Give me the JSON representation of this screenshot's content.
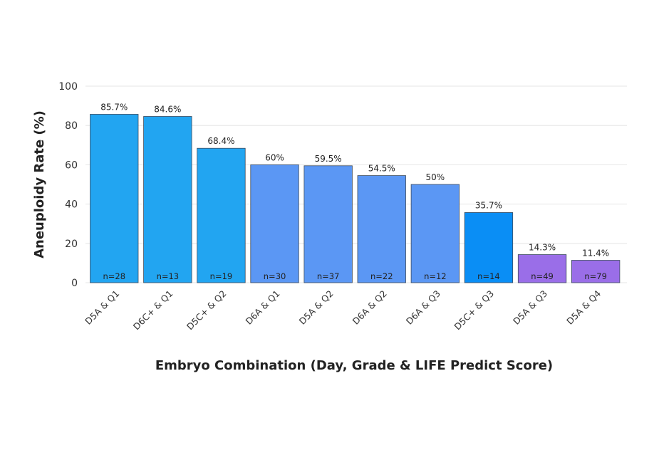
{
  "chart_data": {
    "type": "bar",
    "title": "",
    "xlabel": "Embryo Combination (Day, Grade & LIFE Predict Score)",
    "ylabel": "Aneuploidy Rate (%)",
    "ylim": [
      0,
      100
    ],
    "yticks": [
      0,
      20,
      40,
      60,
      80,
      100
    ],
    "grid": true,
    "categories": [
      "D5A & Q1",
      "D6C+ & Q1",
      "D5C+ & Q2",
      "D6A & Q1",
      "D5A & Q2",
      "D6A & Q2",
      "D6A & Q3",
      "D5C+ & Q3",
      "D5A & Q3",
      "D5A & Q4"
    ],
    "values": [
      85.7,
      84.6,
      68.4,
      60,
      59.5,
      54.5,
      50,
      35.7,
      14.3,
      11.4
    ],
    "value_labels": [
      "85.7%",
      "84.6%",
      "68.4%",
      "60%",
      "59.5%",
      "54.5%",
      "50%",
      "35.7%",
      "14.3%",
      "11.4%"
    ],
    "n_labels": [
      "n=28",
      "n=13",
      "n=19",
      "n=30",
      "n=37",
      "n=22",
      "n=12",
      "n=14",
      "n=49",
      "n=79"
    ],
    "colors": [
      "#22a5f1",
      "#22a5f1",
      "#22a5f1",
      "#5b97f4",
      "#5b97f4",
      "#5b97f4",
      "#5b97f4",
      "#0a8ef5",
      "#9a6ee8",
      "#9a6ee8"
    ]
  }
}
